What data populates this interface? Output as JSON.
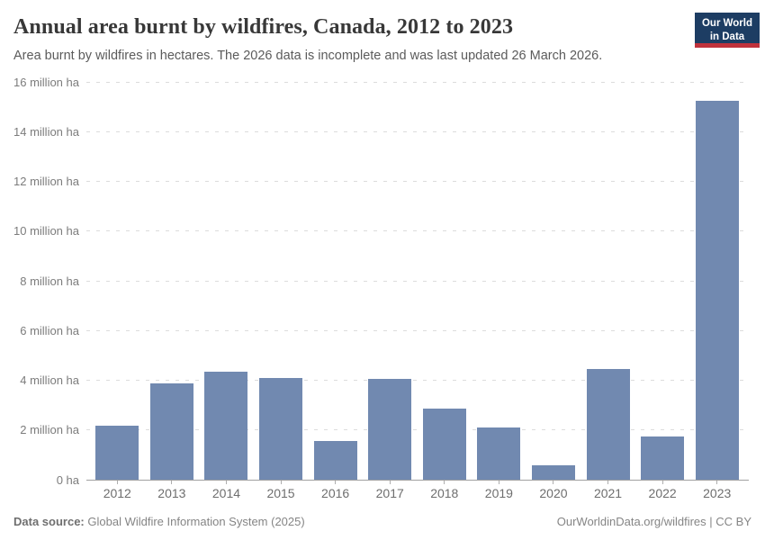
{
  "header": {
    "title": "Annual area burnt by wildfires, Canada, 2012 to 2023",
    "subtitle": "Area burnt by wildfires in hectares. The 2026 data is incomplete and was last updated 26 March 2026.",
    "logo": {
      "line1": "Our World",
      "line2": "in Data",
      "bg_color": "#1d3d63",
      "accent_color": "#c0323c",
      "text_color": "#ffffff"
    }
  },
  "chart_data": {
    "type": "bar",
    "title": "Annual area burnt by wildfires, Canada, 2012 to 2023",
    "xlabel": "",
    "ylabel": "",
    "unit": "million ha",
    "categories": [
      "2012",
      "2013",
      "2014",
      "2015",
      "2016",
      "2017",
      "2018",
      "2019",
      "2020",
      "2021",
      "2022",
      "2023"
    ],
    "values": [
      2.16,
      3.87,
      4.36,
      4.09,
      1.56,
      4.04,
      2.87,
      2.1,
      0.59,
      4.45,
      1.75,
      15.24
    ],
    "ylim": [
      0,
      16
    ],
    "ytick_interval": 2,
    "yticks": [
      {
        "value": 0,
        "label": "0 ha"
      },
      {
        "value": 2,
        "label": "2 million ha"
      },
      {
        "value": 4,
        "label": "4 million ha"
      },
      {
        "value": 6,
        "label": "6 million ha"
      },
      {
        "value": 8,
        "label": "8 million ha"
      },
      {
        "value": 10,
        "label": "10 million ha"
      },
      {
        "value": 12,
        "label": "12 million ha"
      },
      {
        "value": 14,
        "label": "14 million ha"
      },
      {
        "value": 16,
        "label": "16 million ha"
      }
    ],
    "grid": "horizontal-dashed",
    "legend": "none",
    "bar_color": "#7189b0"
  },
  "footer": {
    "source_label": "Data source:",
    "source_value": "Global Wildfire Information System (2025)",
    "attribution": "OurWorldinData.org/wildfires | CC BY"
  }
}
